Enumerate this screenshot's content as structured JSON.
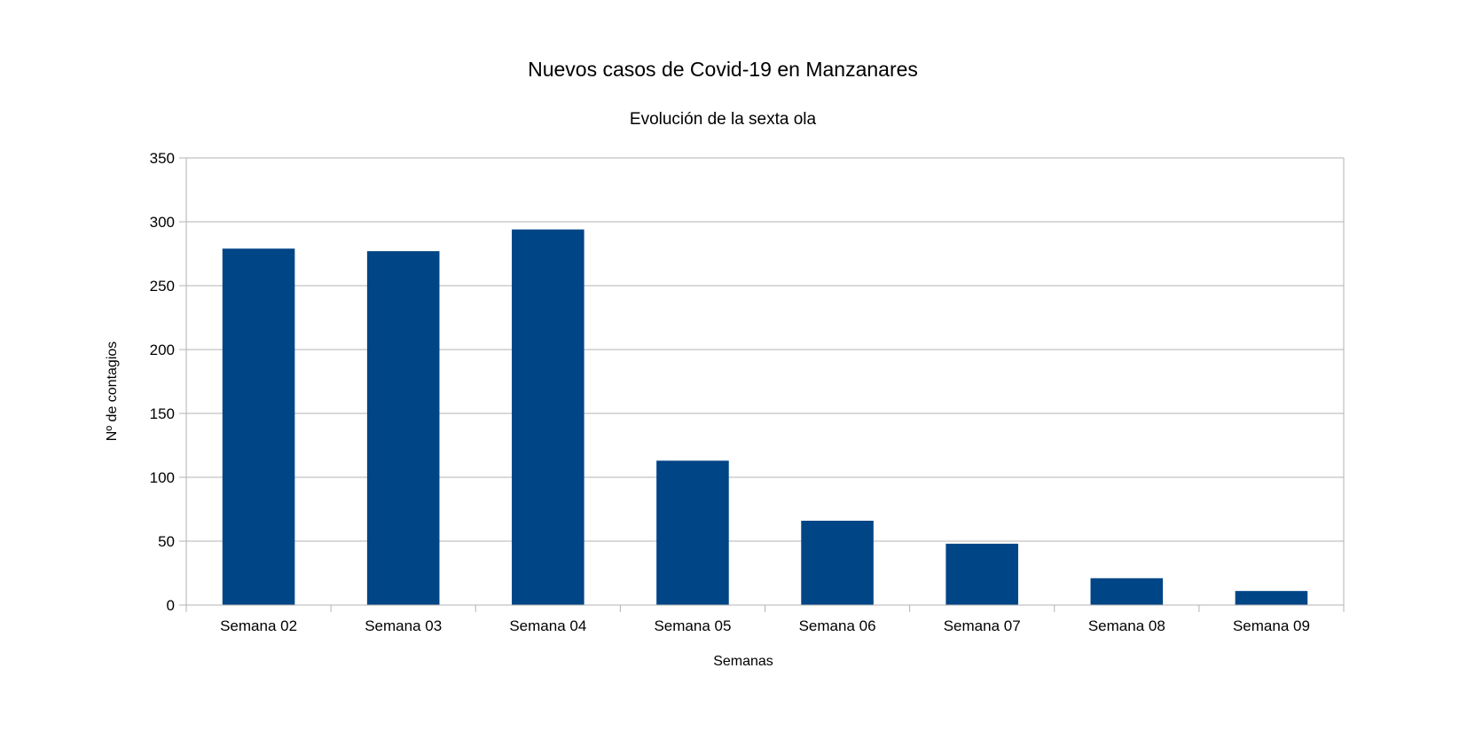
{
  "chart_data": {
    "type": "bar",
    "title": "Nuevos casos de Covid-19 en Manzanares",
    "subtitle": "Evolución de la sexta ola",
    "xlabel": "Semanas",
    "ylabel": "Nº de contagios",
    "categories": [
      "Semana 02",
      "Semana 03",
      "Semana 04",
      "Semana 05",
      "Semana 06",
      "Semana 07",
      "Semana 08",
      "Semana 09"
    ],
    "values": [
      279,
      277,
      294,
      113,
      66,
      48,
      21,
      11
    ],
    "ylim": [
      0,
      350
    ],
    "yticks": [
      0,
      50,
      100,
      150,
      200,
      250,
      300,
      350
    ],
    "grid": true,
    "legend": "none",
    "bar_color": "#004586"
  }
}
